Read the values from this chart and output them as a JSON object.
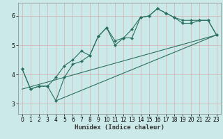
{
  "xlabel": "Humidex (Indice chaleur)",
  "xlim": [
    -0.5,
    23.5
  ],
  "ylim": [
    2.65,
    6.45
  ],
  "xticks": [
    0,
    1,
    2,
    3,
    4,
    5,
    6,
    7,
    8,
    9,
    10,
    11,
    12,
    13,
    14,
    15,
    16,
    17,
    18,
    19,
    20,
    21,
    22,
    23
  ],
  "yticks": [
    3,
    4,
    5,
    6
  ],
  "background_color": "#cce9e9",
  "grid_color": "#b0d4d4",
  "line_color": "#2a7060",
  "line1_x": [
    0,
    1,
    2,
    3,
    4,
    5,
    6,
    7,
    8,
    9,
    10,
    11,
    12,
    13,
    14,
    15,
    16,
    17,
    18,
    19,
    20,
    21,
    22,
    23
  ],
  "line1_y": [
    4.2,
    3.5,
    3.6,
    3.6,
    3.9,
    4.3,
    4.5,
    4.8,
    4.65,
    5.3,
    5.6,
    5.15,
    5.25,
    5.55,
    5.95,
    6.0,
    6.25,
    6.1,
    5.95,
    5.85,
    5.85,
    5.85,
    5.85,
    5.35
  ],
  "line2_x": [
    0,
    1,
    2,
    3,
    4,
    5,
    6,
    7,
    8,
    9,
    10,
    11,
    12,
    13,
    14,
    15,
    16,
    17,
    18,
    19,
    20,
    21,
    22,
    23
  ],
  "line2_y": [
    4.2,
    3.5,
    3.6,
    3.6,
    3.1,
    3.9,
    4.35,
    4.45,
    4.65,
    5.3,
    5.6,
    5.0,
    5.25,
    5.25,
    5.95,
    6.0,
    6.25,
    6.1,
    5.95,
    5.75,
    5.75,
    5.85,
    5.85,
    5.35
  ],
  "line3_x": [
    0,
    23
  ],
  "line3_y": [
    3.5,
    5.35
  ],
  "line4_x": [
    4,
    23
  ],
  "line4_y": [
    3.1,
    5.35
  ]
}
